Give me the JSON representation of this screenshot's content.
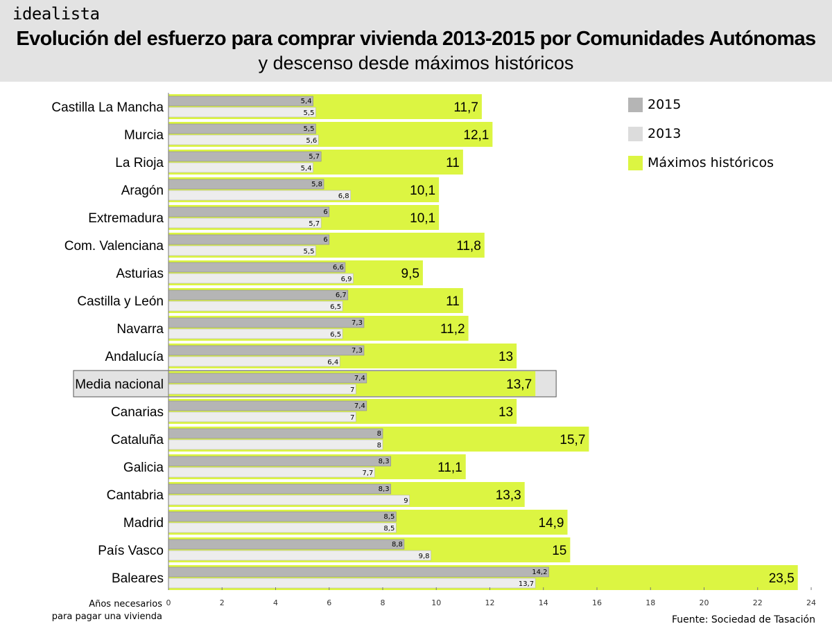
{
  "header": {
    "brand": "idealista",
    "title": "Evolución del esfuerzo para comprar vivienda 2013-2015 por Comunidades Autónomas",
    "subtitle": "y descenso desde máximos históricos"
  },
  "colors": {
    "s2015": "#b5b5b5",
    "s2013": "#ededed",
    "max": "#dcf542",
    "header_bg": "#e3e3e3",
    "highlight_bg": "#e3e3e3"
  },
  "legend": [
    {
      "label": "2015",
      "color": "#b5b5b5"
    },
    {
      "label": "2013",
      "color": "#dcdcdc"
    },
    {
      "label": "Máximos históricos",
      "color": "#dcf542"
    }
  ],
  "axis_note": {
    "line1": "Años necesarios",
    "line2": "para pagar una vivienda"
  },
  "source": "Fuente: Sociedad de Tasación",
  "chart_data": {
    "type": "bar",
    "orientation": "horizontal",
    "title": "Evolución del esfuerzo para comprar vivienda 2013-2015 por Comunidades Autónomas",
    "subtitle": "y descenso desde máximos históricos",
    "xlabel": "Años necesarios para pagar una vivienda",
    "xlim": [
      0,
      24
    ],
    "xticks": [
      0,
      2,
      4,
      6,
      8,
      10,
      12,
      14,
      16,
      18,
      20,
      22,
      24
    ],
    "highlight": "Media nacional",
    "categories": [
      "Castilla La Mancha",
      "Murcia",
      "La Rioja",
      "Aragón",
      "Extremadura",
      "Com. Valenciana",
      "Asturias",
      "Castilla y León",
      "Navarra",
      "Andalucía",
      "Media nacional",
      "Canarias",
      "Cataluña",
      "Galicia",
      "Cantabria",
      "Madrid",
      "País Vasco",
      "Baleares"
    ],
    "series": [
      {
        "name": "Máximos históricos",
        "values": [
          11.7,
          12.1,
          11,
          10.1,
          10.1,
          11.8,
          9.5,
          11,
          11.2,
          13,
          13.7,
          13,
          15.7,
          11.1,
          13.3,
          14.9,
          15,
          23.5
        ],
        "labels": [
          "11,7",
          "12,1",
          "11",
          "10,1",
          "10,1",
          "11,8",
          "9,5",
          "11",
          "11,2",
          "13",
          "13,7",
          "13",
          "15,7",
          "11,1",
          "13,3",
          "14,9",
          "15",
          "23,5"
        ]
      },
      {
        "name": "2015",
        "values": [
          5.4,
          5.5,
          5.7,
          5.8,
          6,
          6,
          6.6,
          6.7,
          7.3,
          7.3,
          7.4,
          7.4,
          8,
          8.3,
          8.3,
          8.5,
          8.8,
          14.2
        ],
        "labels": [
          "5,4",
          "5,5",
          "5,7",
          "5,8",
          "6",
          "6",
          "6,6",
          "6,7",
          "7,3",
          "7,3",
          "7,4",
          "7,4",
          "8",
          "8,3",
          "8,3",
          "8,5",
          "8,8",
          "14,2"
        ]
      },
      {
        "name": "2013",
        "values": [
          5.5,
          5.6,
          5.4,
          6.8,
          5.7,
          5.5,
          6.9,
          6.5,
          6.5,
          6.4,
          7,
          7,
          8,
          7.7,
          9,
          8.5,
          9.8,
          13.7
        ],
        "labels": [
          "5,5",
          "5,6",
          "5,4",
          "6,8",
          "5,7",
          "5,5",
          "6,9",
          "6,5",
          "6,5",
          "6,4",
          "7",
          "7",
          "8",
          "7,7",
          "9",
          "8,5",
          "9,8",
          "13,7"
        ]
      }
    ],
    "legend_position": "top-right"
  }
}
